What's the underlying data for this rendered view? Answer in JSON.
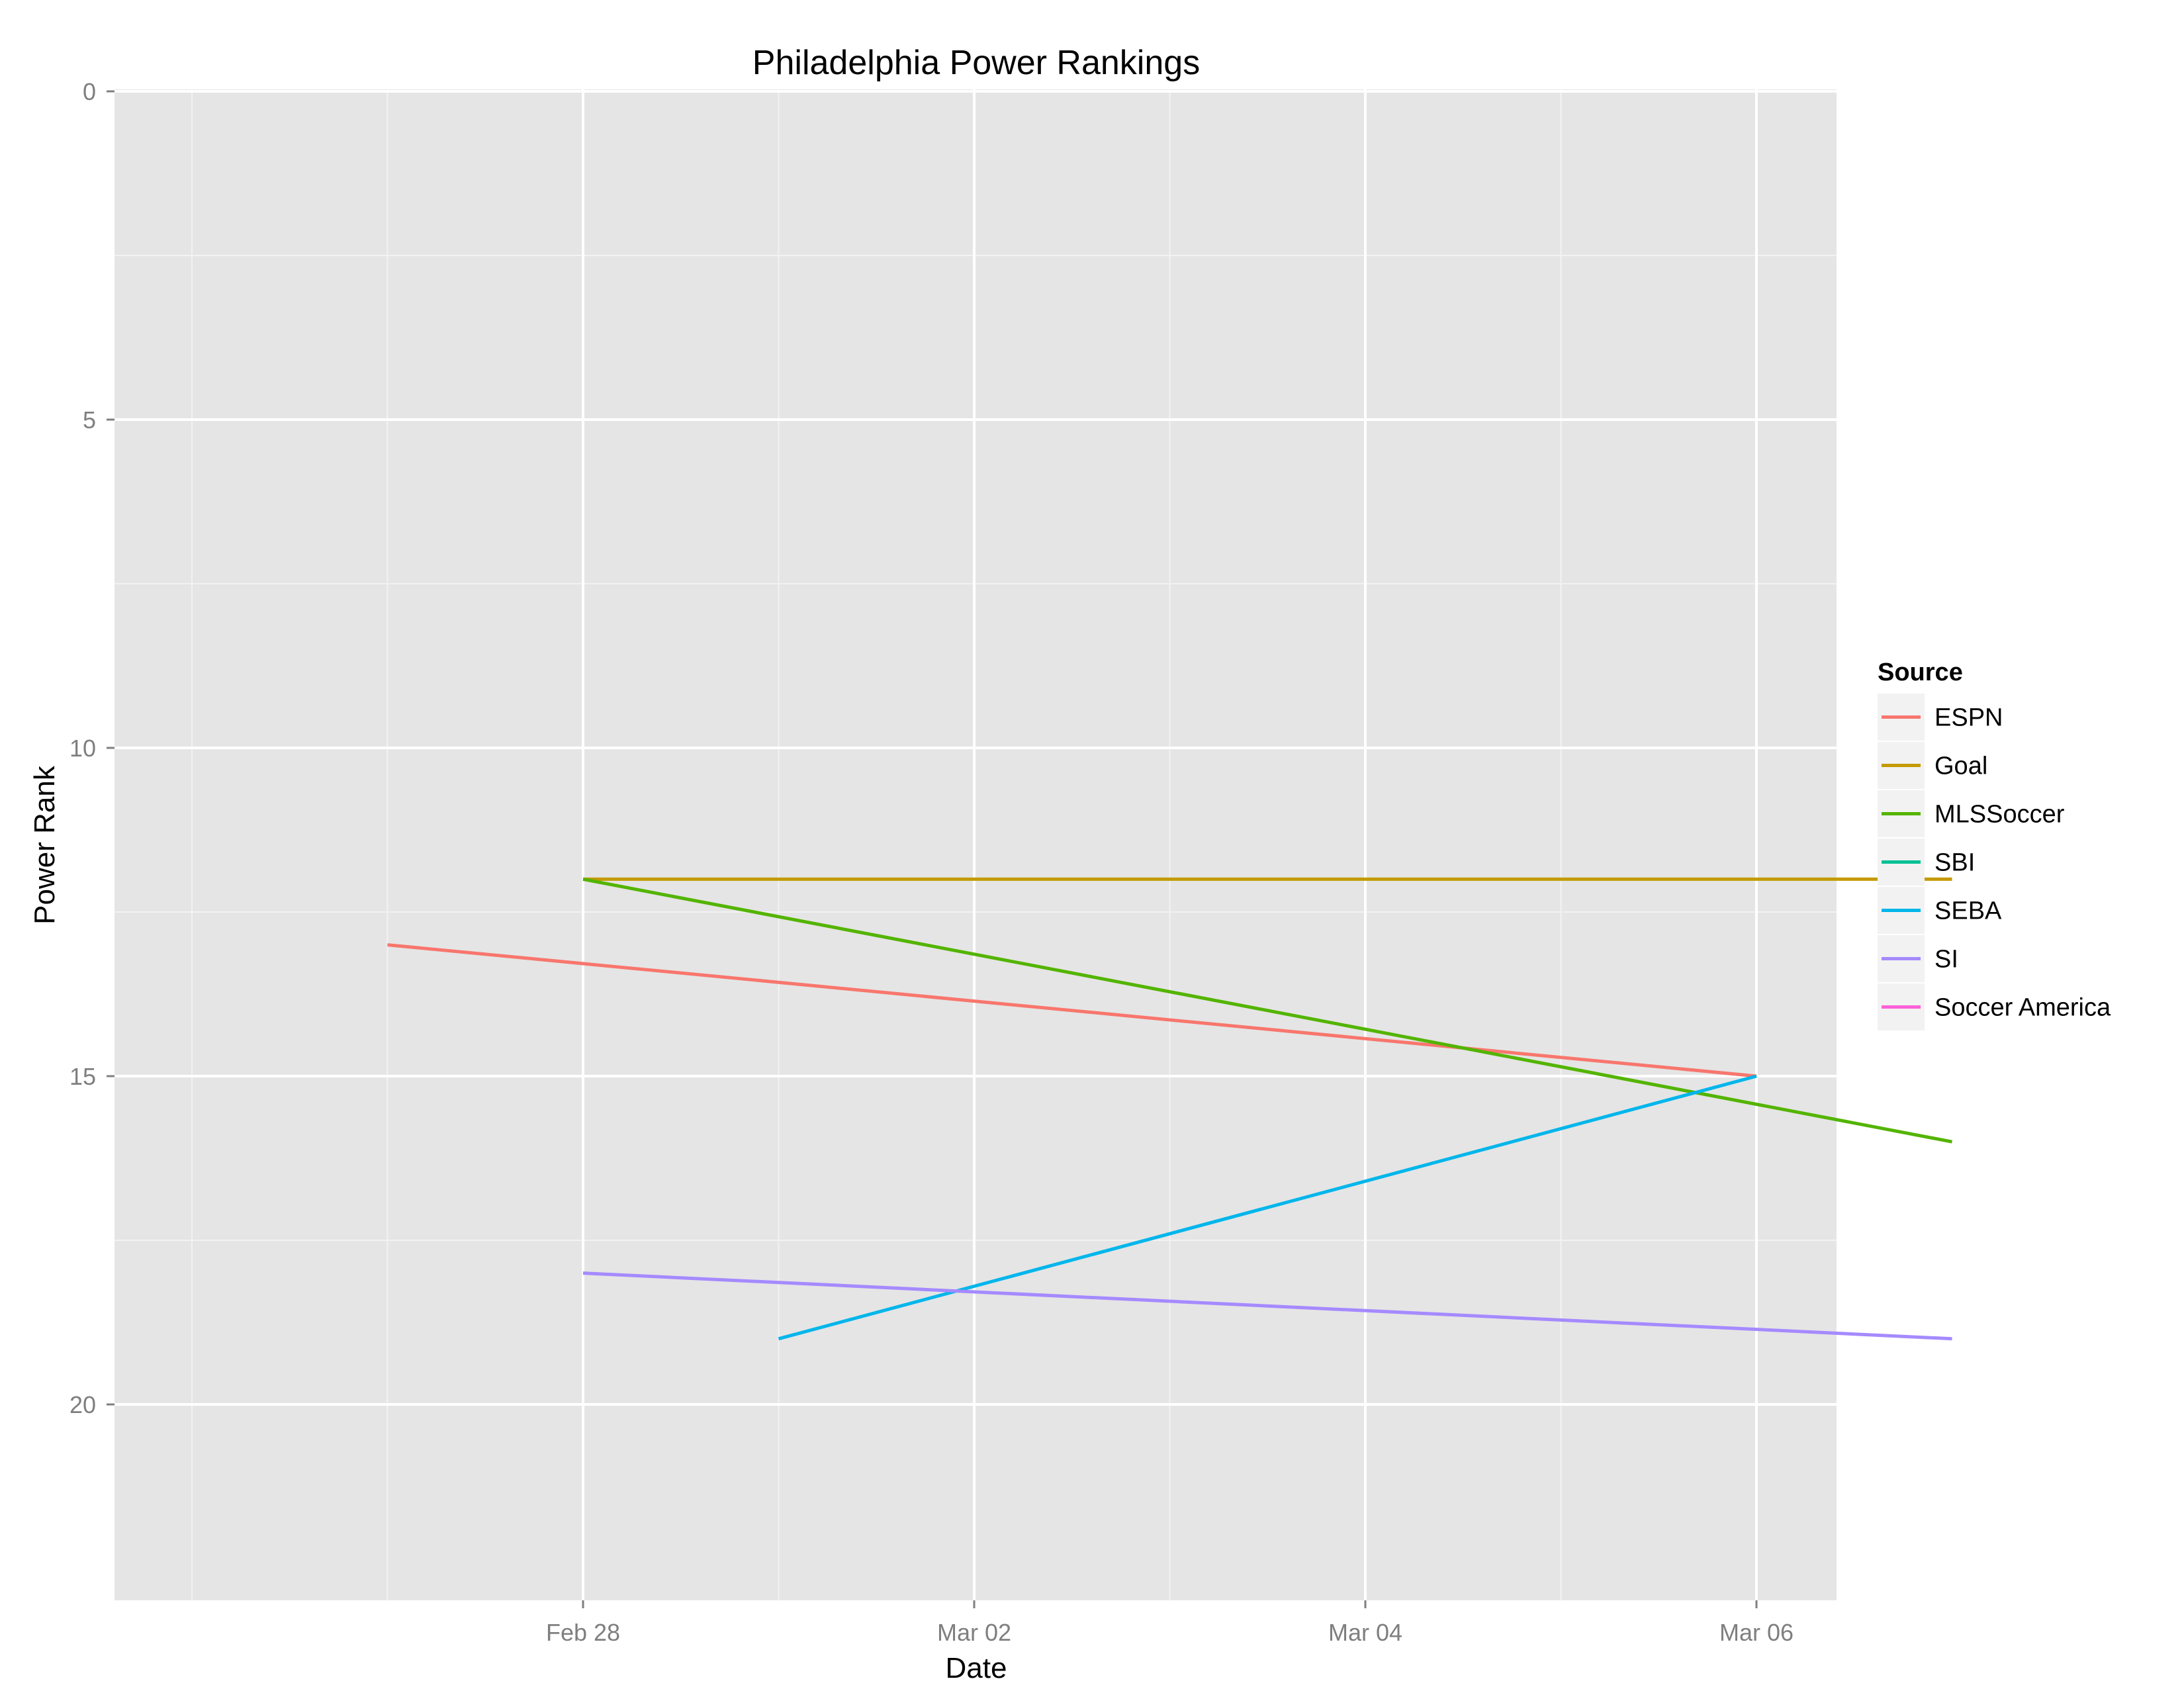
{
  "chart_data": {
    "type": "line",
    "title": "Philadelphia Power Rankings",
    "xlabel": "Date",
    "ylabel": "Power Rank",
    "y_reversed": true,
    "ylim": [
      0,
      23
    ],
    "yticks": [
      0,
      5,
      10,
      15,
      20
    ],
    "xlim": [
      "2015-02-26",
      "2015-03-07"
    ],
    "xticks": [
      {
        "date": "2015-02-28",
        "label": "Feb 28"
      },
      {
        "date": "2015-03-02",
        "label": "Mar 02"
      },
      {
        "date": "2015-03-04",
        "label": "Mar 04"
      },
      {
        "date": "2015-03-06",
        "label": "Mar 06"
      }
    ],
    "grid": true,
    "panel_background": "#e5e5e5",
    "legend": {
      "title": "Source",
      "position": "right"
    },
    "series": [
      {
        "name": "ESPN",
        "color": "#f8766d",
        "points": [
          {
            "x": "2015-02-27",
            "y": 13
          },
          {
            "x": "2015-03-06",
            "y": 15
          }
        ]
      },
      {
        "name": "Goal",
        "color": "#c49a00",
        "points": [
          {
            "x": "2015-02-28",
            "y": 12
          },
          {
            "x": "2015-03-07",
            "y": 12
          }
        ]
      },
      {
        "name": "MLSSoccer",
        "color": "#53b400",
        "points": [
          {
            "x": "2015-02-28",
            "y": 12
          },
          {
            "x": "2015-03-07",
            "y": 16
          }
        ]
      },
      {
        "name": "SBI",
        "color": "#00c094",
        "points": []
      },
      {
        "name": "SEBA",
        "color": "#00b6eb",
        "points": [
          {
            "x": "2015-03-01",
            "y": 19
          },
          {
            "x": "2015-03-06",
            "y": 15
          }
        ]
      },
      {
        "name": "SI",
        "color": "#a58aff",
        "points": [
          {
            "x": "2015-02-28",
            "y": 18
          },
          {
            "x": "2015-03-07",
            "y": 19
          }
        ]
      },
      {
        "name": "Soccer America",
        "color": "#fb61d7",
        "points": []
      }
    ]
  }
}
